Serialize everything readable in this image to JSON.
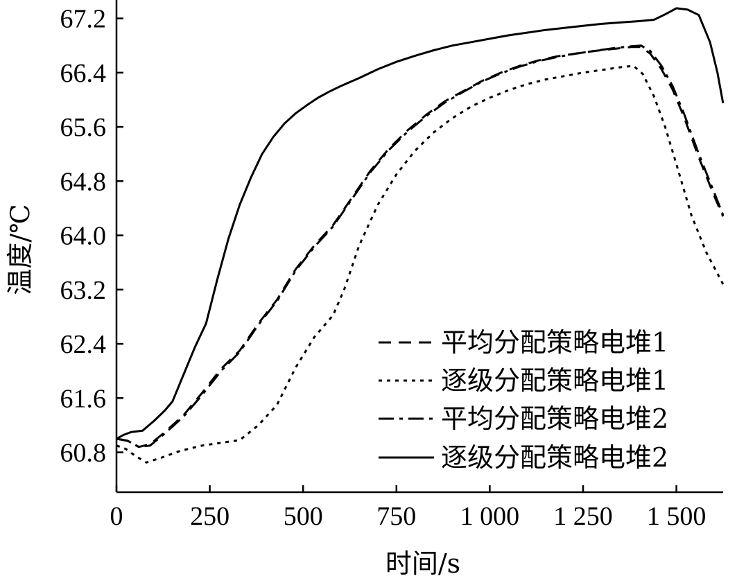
{
  "chart_data": {
    "type": "line",
    "title": "",
    "xlabel": "时间/s",
    "ylabel": "温度/℃",
    "xlim": [
      0,
      1625
    ],
    "ylim": [
      60.4,
      67.2
    ],
    "xticks": [
      0,
      250,
      500,
      750,
      1000,
      1250,
      1500
    ],
    "xtick_labels": [
      "0",
      "250",
      "500",
      "750",
      "1 000",
      "1 250",
      "1 500"
    ],
    "yticks": [
      60.8,
      61.6,
      62.4,
      63.2,
      64.0,
      64.8,
      65.6,
      66.4,
      67.2
    ],
    "ytick_labels": [
      "60.8",
      "61.6",
      "62.4",
      "63.2",
      "64.0",
      "64.8",
      "65.6",
      "66.4",
      "67.2"
    ],
    "grid": false,
    "legend_position": "bottom-right",
    "series": [
      {
        "name": "平均分配策略电堆1",
        "dash": "dashed",
        "x": [
          0,
          30,
          60,
          90,
          130,
          180,
          230,
          280,
          330,
          380,
          430,
          480,
          530,
          580,
          630,
          680,
          730,
          780,
          830,
          880,
          930,
          980,
          1030,
          1080,
          1130,
          1180,
          1230,
          1280,
          1330,
          1380,
          1405,
          1430,
          1460,
          1490,
          1520,
          1560,
          1600,
          1625
        ],
        "y": [
          61.0,
          60.97,
          60.88,
          60.92,
          61.1,
          61.35,
          61.68,
          62.03,
          62.3,
          62.7,
          63.05,
          63.5,
          63.85,
          64.15,
          64.55,
          64.95,
          65.28,
          65.55,
          65.78,
          65.98,
          66.13,
          66.28,
          66.4,
          66.5,
          66.58,
          66.64,
          66.68,
          66.72,
          66.75,
          66.78,
          66.78,
          66.68,
          66.45,
          66.15,
          65.75,
          65.15,
          64.6,
          64.28
        ]
      },
      {
        "name": "逐级分配策略电堆1",
        "dash": "dotted",
        "x": [
          0,
          25,
          50,
          80,
          120,
          170,
          230,
          280,
          330,
          380,
          430,
          480,
          530,
          580,
          610,
          650,
          700,
          750,
          800,
          850,
          900,
          950,
          1000,
          1050,
          1100,
          1150,
          1200,
          1250,
          1300,
          1350,
          1385,
          1410,
          1440,
          1470,
          1500,
          1540,
          1580,
          1625
        ],
        "y": [
          60.9,
          60.85,
          60.75,
          60.65,
          60.72,
          60.82,
          60.9,
          60.94,
          60.98,
          61.2,
          61.5,
          62.05,
          62.5,
          62.82,
          63.2,
          63.85,
          64.45,
          64.9,
          65.25,
          65.52,
          65.73,
          65.9,
          66.03,
          66.14,
          66.23,
          66.3,
          66.35,
          66.4,
          66.44,
          66.48,
          66.5,
          66.38,
          66.05,
          65.6,
          65.05,
          64.3,
          63.75,
          63.28
        ]
      },
      {
        "name": "平均分配策略电堆2",
        "dash": "dashdot",
        "x": [
          0,
          30,
          60,
          90,
          130,
          180,
          230,
          280,
          330,
          380,
          430,
          480,
          530,
          580,
          630,
          680,
          730,
          780,
          830,
          880,
          930,
          980,
          1030,
          1080,
          1130,
          1180,
          1230,
          1280,
          1330,
          1380,
          1405,
          1430,
          1460,
          1490,
          1520,
          1560,
          1600,
          1625
        ],
        "y": [
          61.0,
          60.97,
          60.88,
          60.9,
          61.08,
          61.33,
          61.65,
          62.0,
          62.28,
          62.68,
          63.03,
          63.48,
          63.83,
          64.13,
          64.53,
          64.93,
          65.26,
          65.53,
          65.76,
          65.96,
          66.12,
          66.27,
          66.39,
          66.49,
          66.57,
          66.63,
          66.68,
          66.72,
          66.76,
          66.79,
          66.8,
          66.72,
          66.5,
          66.2,
          65.8,
          65.2,
          64.65,
          64.3
        ]
      },
      {
        "name": "逐级分配策略电堆2",
        "dash": "solid",
        "x": [
          0,
          20,
          40,
          70,
          100,
          130,
          150,
          180,
          210,
          240,
          270,
          300,
          330,
          360,
          390,
          420,
          450,
          480,
          510,
          540,
          570,
          600,
          650,
          700,
          750,
          800,
          850,
          900,
          950,
          1000,
          1050,
          1100,
          1150,
          1200,
          1250,
          1300,
          1350,
          1400,
          1440,
          1470,
          1500,
          1530,
          1560,
          1590,
          1610,
          1625
        ],
        "y": [
          61.0,
          61.06,
          61.1,
          61.12,
          61.26,
          61.42,
          61.55,
          61.95,
          62.35,
          62.7,
          63.35,
          63.95,
          64.45,
          64.85,
          65.2,
          65.45,
          65.65,
          65.8,
          65.92,
          66.03,
          66.12,
          66.2,
          66.32,
          66.45,
          66.56,
          66.65,
          66.73,
          66.8,
          66.85,
          66.9,
          66.95,
          66.99,
          67.03,
          67.06,
          67.09,
          67.12,
          67.14,
          67.16,
          67.18,
          67.26,
          67.35,
          67.33,
          67.25,
          66.85,
          66.4,
          65.95
        ]
      }
    ]
  }
}
